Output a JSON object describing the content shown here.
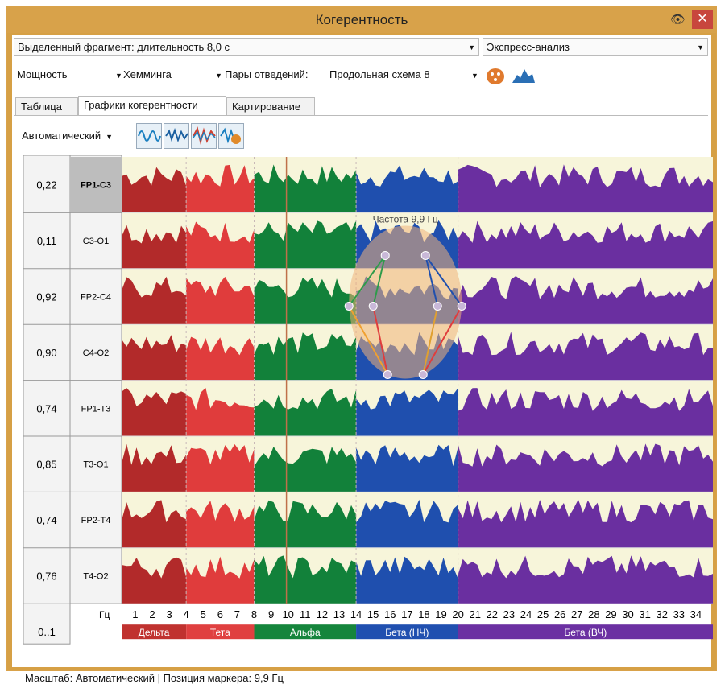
{
  "window": {
    "title": "Когерентность",
    "close_glyph": "✕",
    "eye_glyph": "👁"
  },
  "toolbar1": {
    "fragment": "Выделенный фрагмент: длительность 8,0 с",
    "analysis": "Экспресс-анализ"
  },
  "toolbar2": {
    "power": "Мощность",
    "window_fn": "Хемминга",
    "pairs_label": "Пары отведений:",
    "pairs_value": "Продольная схема 8"
  },
  "tabs": [
    {
      "label": "Таблица"
    },
    {
      "label": "Графики когерентности"
    },
    {
      "label": "Картирование"
    }
  ],
  "mode": {
    "value": "Автоматический"
  },
  "status": "Масштаб: Автоматический  | Позиция маркера: 9,9 Гц",
  "marker_label": "Частота 9,9 Гц",
  "chart_data": {
    "type": "area",
    "x_unit": "Гц",
    "x_ticks": [
      1,
      2,
      3,
      4,
      5,
      6,
      7,
      8,
      9,
      10,
      11,
      12,
      13,
      14,
      15,
      16,
      17,
      18,
      19,
      20,
      21,
      22,
      23,
      24,
      25,
      26,
      27,
      28,
      29,
      30,
      31,
      32,
      33,
      34
    ],
    "x_range": [
      0.2,
      35
    ],
    "marker_hz": 9.9,
    "scale_label": "0..1",
    "bands": [
      {
        "name": "Дельта",
        "from": 0.2,
        "to": 4,
        "color": "#b22a2a",
        "label_color": "#c0322f"
      },
      {
        "name": "Тета",
        "from": 4,
        "to": 8,
        "color": "#e03c3c",
        "label_color": "#e04040"
      },
      {
        "name": "Альфа",
        "from": 8,
        "to": 14,
        "color": "#12813a",
        "label_color": "#15853c"
      },
      {
        "name": "Бета (НЧ)",
        "from": 14,
        "to": 20,
        "color": "#1f4fae",
        "label_color": "#2050b0"
      },
      {
        "name": "Бета (ВЧ)",
        "from": 20,
        "to": 35,
        "color": "#6a2fa0",
        "label_color": "#6b30a2"
      }
    ],
    "series": [
      {
        "name": "FP1-C3",
        "value": "0,22"
      },
      {
        "name": "C3-O1",
        "value": "0,11"
      },
      {
        "name": "FP2-C4",
        "value": "0,92"
      },
      {
        "name": "C4-O2",
        "value": "0,90"
      },
      {
        "name": "FP1-T3",
        "value": "0,74"
      },
      {
        "name": "T3-O1",
        "value": "0,85"
      },
      {
        "name": "FP2-T4",
        "value": "0,74"
      },
      {
        "name": "T4-O2",
        "value": "0,76"
      }
    ]
  }
}
